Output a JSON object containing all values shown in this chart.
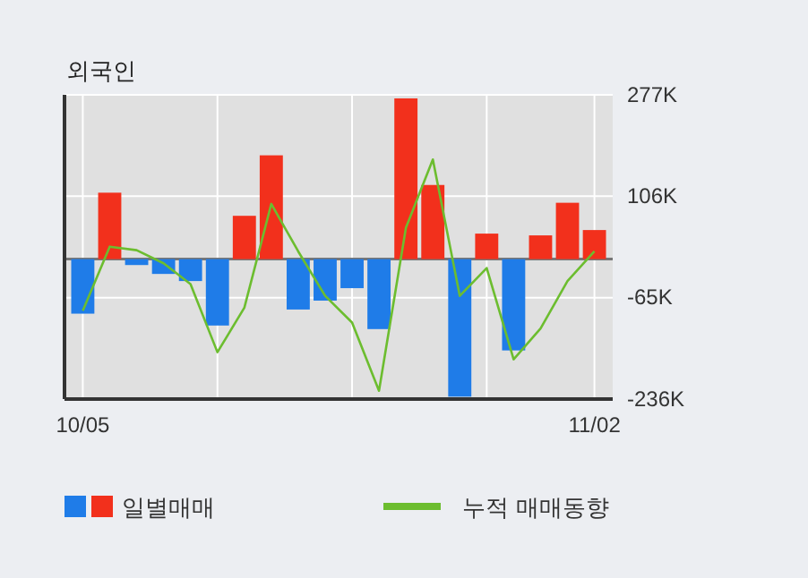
{
  "chart_data": {
    "type": "bar",
    "title": "외국인",
    "categories": [
      "10/05",
      null,
      null,
      null,
      null,
      null,
      null,
      null,
      null,
      null,
      null,
      null,
      null,
      null,
      null,
      null,
      null,
      null,
      null,
      "11/02"
    ],
    "series": [
      {
        "name": "일별매매",
        "colors": [
          "#1f7ce8",
          "#f2301c",
          "#1f7ce8",
          "#1f7ce8",
          "#1f7ce8",
          "#1f7ce8",
          "#f2301c",
          "#f2301c",
          "#1f7ce8",
          "#1f7ce8",
          "#1f7ce8",
          "#1f7ce8",
          "#f2301c",
          "#f2301c",
          "#1f7ce8",
          "#f2301c",
          "#1f7ce8",
          "#f2301c",
          "#f2301c",
          "#f2301c"
        ],
        "values": [
          -92000,
          112000,
          -10000,
          -25000,
          -37000,
          -112000,
          73000,
          175000,
          -85000,
          -70000,
          -49000,
          -118000,
          271000,
          125000,
          -232000,
          43000,
          -154000,
          40000,
          95000,
          49000
        ]
      },
      {
        "name": "누적 매매동향",
        "type": "line",
        "color": "#6cbd2f",
        "values": [
          -87000,
          21000,
          15000,
          -7000,
          -42000,
          -157000,
          -82000,
          93000,
          13000,
          -62000,
          -107000,
          -222000,
          53000,
          168000,
          -62000,
          -15000,
          -169000,
          -117000,
          -37000,
          13000
        ]
      }
    ],
    "ylim": [
      -236000,
      277000
    ],
    "yticks": [
      {
        "value": 277000,
        "label": "277K"
      },
      {
        "value": 106000,
        "label": "106K"
      },
      {
        "value": -65000,
        "label": "-65K"
      },
      {
        "value": -236000,
        "label": "-236K"
      }
    ],
    "grid": true,
    "legend": "bottom"
  }
}
